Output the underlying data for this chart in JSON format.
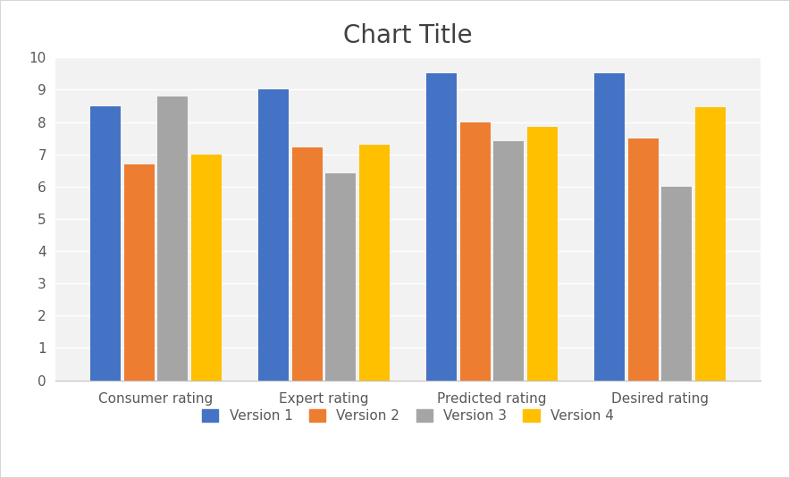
{
  "title": "Chart Title",
  "categories": [
    "Consumer rating",
    "Expert rating",
    "Predicted rating",
    "Desired rating"
  ],
  "series": [
    {
      "name": "Version 1",
      "values": [
        8.5,
        9.0,
        9.5,
        9.5
      ],
      "color": "#4472C4"
    },
    {
      "name": "Version 2",
      "values": [
        6.7,
        7.2,
        8.0,
        7.5
      ],
      "color": "#ED7D31"
    },
    {
      "name": "Version 3",
      "values": [
        8.8,
        6.4,
        7.4,
        6.0
      ],
      "color": "#A5A5A5"
    },
    {
      "name": "Version 4",
      "values": [
        7.0,
        7.3,
        7.85,
        8.45
      ],
      "color": "#FFC000"
    }
  ],
  "ylim": [
    0,
    10
  ],
  "yticks": [
    0,
    1,
    2,
    3,
    4,
    5,
    6,
    7,
    8,
    9,
    10
  ],
  "title_fontsize": 20,
  "tick_fontsize": 11,
  "legend_fontsize": 11,
  "plot_bg_color": "#F2F2F2",
  "fig_bg_color": "#FFFFFF",
  "grid_color": "#FFFFFF",
  "border_color": "#D6D6D6"
}
